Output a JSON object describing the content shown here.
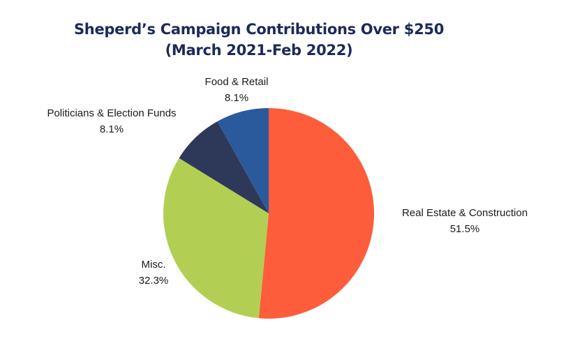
{
  "colors": {
    "title": "#1b2a5b",
    "label": "#1a1a1a",
    "background": "#ffffff"
  },
  "chart_data": {
    "type": "pie",
    "title_line1": "Sheperd’s Campaign Contributions Over $250",
    "title_line2": "(March 2021-Feb 2022)",
    "start_angle_deg": 0,
    "direction": "clockwise",
    "slices": [
      {
        "label": "Real Estate & Construction",
        "value": 51.5,
        "value_label": "51.5%",
        "color": "#fd5d3b"
      },
      {
        "label": "Misc.",
        "value": 32.3,
        "value_label": "32.3%",
        "color": "#b2cf54"
      },
      {
        "label": "Politicians & Election Funds",
        "value": 8.1,
        "value_label": "8.1%",
        "color": "#2e3859"
      },
      {
        "label": "Food & Retail",
        "value": 8.1,
        "value_label": "8.1%",
        "color": "#2b5a9c"
      }
    ]
  }
}
